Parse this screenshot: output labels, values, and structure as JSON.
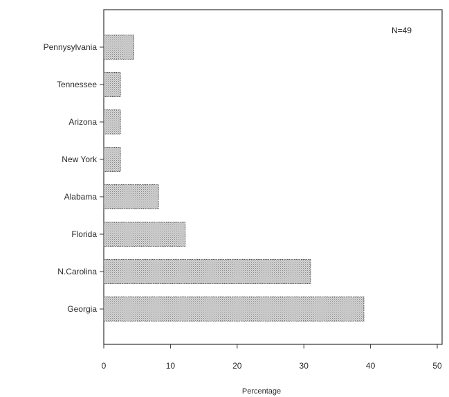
{
  "chart_data": {
    "type": "bar",
    "orientation": "horizontal",
    "categories": [
      "Pennysylvania",
      "Tennessee",
      "Arizona",
      "New York",
      "Alabama",
      "Florida",
      "N.Carolina",
      "Georgia"
    ],
    "values": [
      4.5,
      2.5,
      2.5,
      2.5,
      8.2,
      12.2,
      31,
      39
    ],
    "annotation": "N=49",
    "xlabel": "Percentage",
    "ylabel": "",
    "xlim": [
      0,
      50
    ],
    "xticks": [
      "0",
      "10",
      "20",
      "30",
      "40",
      "50"
    ],
    "grid": false,
    "legend": "none",
    "colors": {
      "bar_fill": "#c9c9c9",
      "bar_stroke": "#555555",
      "frame": "#333333"
    }
  }
}
